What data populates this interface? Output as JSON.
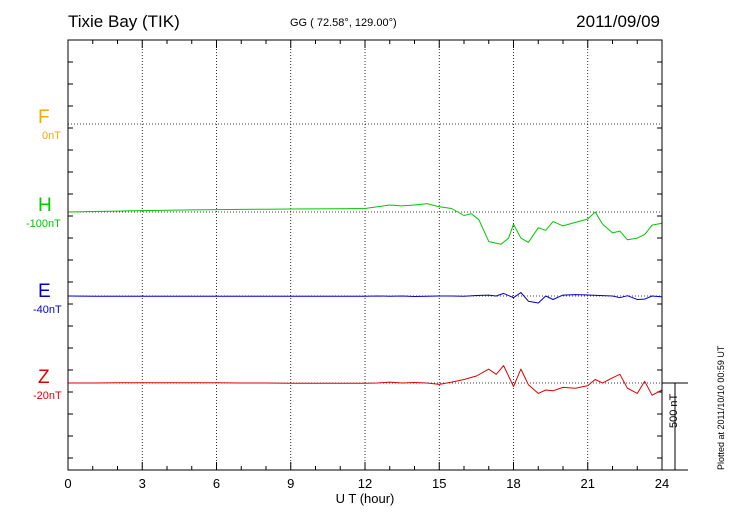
{
  "header": {
    "station": "Tixie Bay (TIK)",
    "coords": "GG ( 72.58°, 129.00°)",
    "date": "2011/09/09"
  },
  "components": [
    {
      "letter": "F",
      "offset": "0nT",
      "color": "#f5a800"
    },
    {
      "letter": "H",
      "offset": "-100nT",
      "color": "#00c800"
    },
    {
      "letter": "E",
      "offset": "-40nT",
      "color": "#0000c8"
    },
    {
      "letter": "Z",
      "offset": "-20nT",
      "color": "#e00000"
    }
  ],
  "scale": {
    "label": "500 nT",
    "value_nT": 500
  },
  "plotted_note": "Plotted at 2011/10/10 00:59 UT",
  "chart_data": {
    "type": "line",
    "xlabel": "U T (hour)",
    "xlim": [
      0,
      24
    ],
    "xticks": [
      0,
      3,
      6,
      9,
      12,
      15,
      18,
      21,
      24
    ],
    "grid": true,
    "series": [
      {
        "name": "H",
        "color": "#00c800",
        "x": [
          0,
          1,
          2,
          3,
          4,
          5,
          6,
          7,
          8,
          9,
          10,
          11,
          12,
          12.5,
          13,
          13.5,
          14,
          14.5,
          15,
          15.5,
          16,
          16.3,
          16.6,
          17,
          17.5,
          17.8,
          18,
          18.3,
          18.6,
          19,
          19.3,
          19.6,
          20,
          20.5,
          21,
          21.3,
          21.6,
          22,
          22.3,
          22.6,
          23,
          23.3,
          23.6,
          24
        ],
        "y": [
          0,
          3,
          5,
          8,
          10,
          12,
          14,
          15,
          16,
          17,
          18,
          19,
          20,
          30,
          40,
          35,
          40,
          48,
          30,
          20,
          -20,
          -10,
          -45,
          -170,
          -185,
          -150,
          -70,
          -150,
          -175,
          -90,
          -105,
          -55,
          -80,
          -60,
          -40,
          0,
          -70,
          -120,
          -110,
          -160,
          -150,
          -130,
          -75,
          -65
        ]
      },
      {
        "name": "E",
        "color": "#0000c8",
        "x": [
          0,
          1,
          2,
          3,
          4,
          5,
          6,
          7,
          8,
          9,
          10,
          11,
          12,
          12.5,
          13,
          13.5,
          14,
          14.5,
          15,
          15.5,
          16,
          16.5,
          17,
          17.3,
          17.6,
          18,
          18.3,
          18.6,
          19,
          19.3,
          19.6,
          20,
          20.5,
          21,
          21.5,
          22,
          22.3,
          22.6,
          23,
          23.3,
          23.6,
          24
        ],
        "y": [
          0,
          -1,
          -2,
          -2,
          -2,
          -2,
          -2,
          -2,
          -2,
          -2,
          -2,
          -1,
          -1,
          0,
          -1,
          0,
          -3,
          -1,
          0,
          0,
          -2,
          3,
          5,
          0,
          15,
          -10,
          20,
          -30,
          -40,
          0,
          -20,
          5,
          8,
          6,
          3,
          0,
          -10,
          2,
          -20,
          -18,
          0,
          -5
        ]
      },
      {
        "name": "Z",
        "color": "#e00000",
        "x": [
          0,
          1,
          2,
          3,
          4,
          5,
          6,
          7,
          8,
          9,
          10,
          11,
          12,
          12.5,
          13,
          13.5,
          14,
          14.5,
          15,
          15.5,
          16,
          16.5,
          17,
          17.3,
          17.6,
          18,
          18.3,
          18.6,
          19,
          19.3,
          19.6,
          20,
          20.5,
          21,
          21.3,
          21.6,
          22,
          22.3,
          22.6,
          23,
          23.3,
          23.6,
          24
        ],
        "y": [
          0,
          0,
          1,
          2,
          2,
          1,
          1,
          0,
          0,
          -1,
          -1,
          -1,
          -2,
          0,
          5,
          0,
          3,
          0,
          -8,
          5,
          20,
          40,
          80,
          50,
          100,
          -20,
          80,
          -10,
          -60,
          -40,
          -45,
          -25,
          -30,
          -15,
          20,
          0,
          30,
          50,
          -30,
          -60,
          10,
          -70,
          -40
        ]
      }
    ]
  }
}
